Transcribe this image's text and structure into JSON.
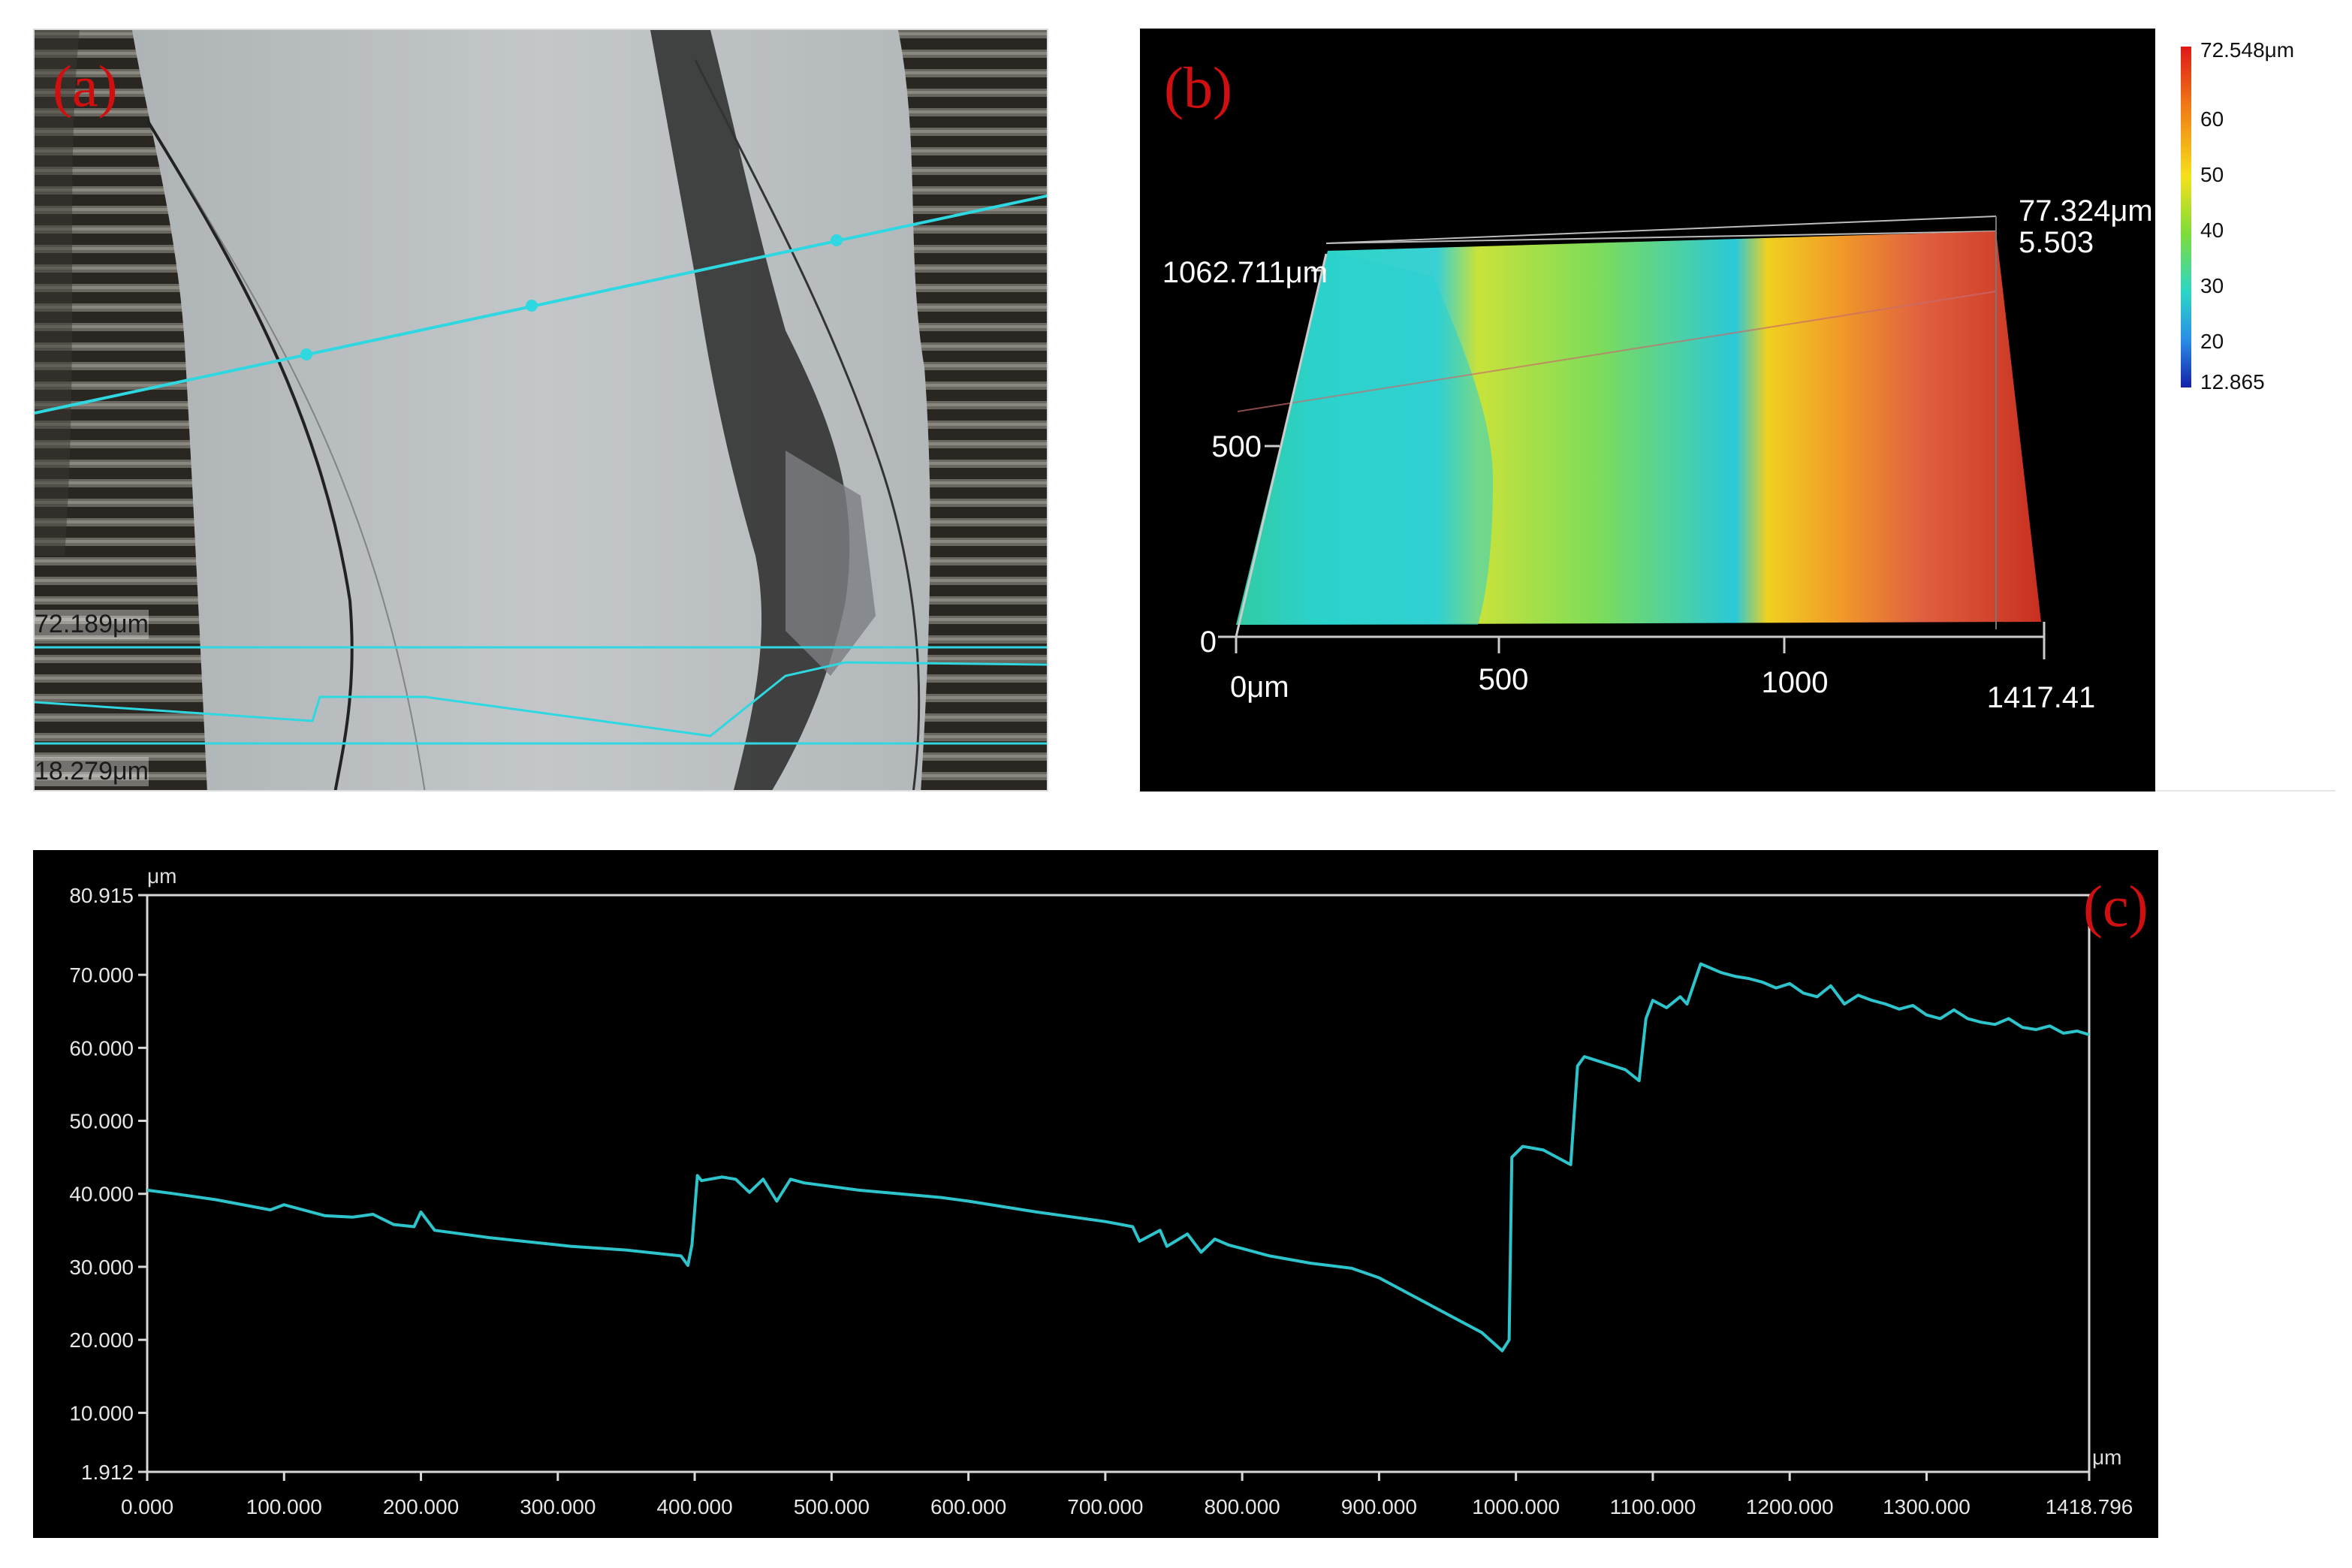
{
  "panel_a": {
    "label": "(a)",
    "scale_max": "72.189μm",
    "scale_min": "18.279μm",
    "colors": {
      "profile_line": "#2fd8e0",
      "surface": "#b7bcbf",
      "machined_band": "#1e1c18"
    }
  },
  "panel_b": {
    "label": "(b)",
    "y_axis_top": "1062.711μm",
    "y_tick_mid": "500",
    "y_tick_zero": "0",
    "x_ticks": [
      "0μm",
      "500",
      "1000",
      "1417.41"
    ],
    "z_top": "77.324μm",
    "z_bottom": "5.503",
    "colorbar": {
      "max": "72.548μm",
      "ticks": [
        "60",
        "50",
        "40",
        "30",
        "20"
      ],
      "min": "12.865",
      "colors": [
        "#e01818",
        "#f07d16",
        "#f6e01a",
        "#7ddc3a",
        "#2cd6c6",
        "#2a8ee6",
        "#1422a8"
      ]
    }
  },
  "panel_c": {
    "label": "(c)",
    "y_unit": "μm",
    "x_unit": "μm",
    "y_tick_labels": [
      "80.915",
      "70.000",
      "60.000",
      "50.000",
      "40.000",
      "30.000",
      "20.000",
      "10.000",
      "1.912"
    ],
    "x_tick_labels": [
      "0.000",
      "100.000",
      "200.000",
      "300.000",
      "400.000",
      "500.000",
      "600.000",
      "700.000",
      "800.000",
      "900.000",
      "1000.000",
      "1100.000",
      "1200.000",
      "1300.000",
      "1418.796"
    ]
  },
  "chart_data": {
    "type": "line",
    "title": "",
    "xlabel": "μm",
    "ylabel": "μm",
    "xlim": [
      0,
      1418.796
    ],
    "ylim": [
      1.912,
      80.915
    ],
    "x_ticks": [
      0,
      100,
      200,
      300,
      400,
      500,
      600,
      700,
      800,
      900,
      1000,
      1100,
      1200,
      1300,
      1418.796
    ],
    "y_ticks": [
      80.915,
      70,
      60,
      50,
      40,
      30,
      20,
      10,
      1.912
    ],
    "grid": false,
    "line_color": "#2ec4cc",
    "series": [
      {
        "x": [
          0,
          20,
          50,
          90,
          100,
          130,
          150,
          165,
          180,
          195,
          200,
          210,
          250,
          300,
          310,
          350,
          390,
          395,
          398,
          402,
          405,
          420,
          430,
          440,
          450,
          460,
          470,
          480,
          500,
          520,
          550,
          580,
          600,
          650,
          700,
          720,
          725,
          740,
          745,
          760,
          770,
          780,
          790,
          800,
          820,
          850,
          880,
          900,
          920,
          950,
          975,
          990,
          995,
          997,
          1005,
          1020,
          1040,
          1045,
          1050,
          1060,
          1080,
          1090,
          1095,
          1100,
          1110,
          1120,
          1125,
          1135,
          1150,
          1160,
          1170,
          1180,
          1190,
          1200,
          1210,
          1220,
          1230,
          1240,
          1250,
          1260,
          1270,
          1280,
          1290,
          1300,
          1310,
          1320,
          1330,
          1340,
          1350,
          1360,
          1370,
          1380,
          1390,
          1400,
          1410,
          1418.796
        ],
        "y": [
          40.5,
          40.0,
          39.2,
          37.8,
          38.5,
          37.0,
          36.8,
          37.2,
          35.8,
          35.5,
          37.5,
          35.0,
          34.0,
          33.0,
          32.8,
          32.3,
          31.5,
          30.2,
          33.0,
          42.5,
          41.8,
          42.3,
          42.0,
          40.2,
          42.0,
          39.0,
          42.0,
          41.5,
          41.0,
          40.5,
          40.0,
          39.5,
          39.0,
          37.5,
          36.2,
          35.5,
          33.5,
          35.0,
          32.8,
          34.5,
          32.0,
          33.8,
          33.0,
          32.5,
          31.5,
          30.5,
          29.8,
          28.5,
          26.5,
          23.5,
          21.0,
          18.5,
          20.0,
          45.0,
          46.5,
          46.0,
          44.0,
          57.5,
          58.8,
          58.2,
          57.0,
          55.5,
          64.0,
          66.5,
          65.5,
          67.0,
          66.0,
          71.5,
          70.3,
          69.8,
          69.5,
          69.0,
          68.2,
          68.8,
          67.5,
          67.0,
          68.5,
          66.0,
          67.2,
          66.5,
          66.0,
          65.3,
          65.8,
          64.5,
          64.0,
          65.2,
          64.0,
          63.5,
          63.2,
          64.0,
          62.8,
          62.5,
          63.0,
          62.0,
          62.3,
          61.8
        ]
      }
    ]
  }
}
